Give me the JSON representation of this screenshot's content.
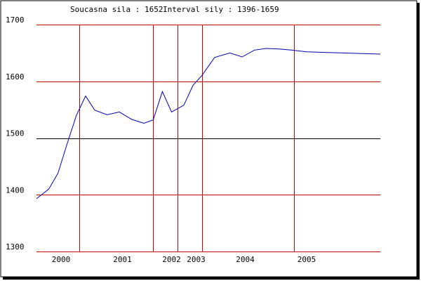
{
  "header": {
    "current_label": "Soucasna sila : 1652",
    "interval_label": "Interval sily : 1396-1659"
  },
  "colors": {
    "line": "#0000aa",
    "grid_vertical": "#cc0000",
    "grid_horizontal": "#cc0000",
    "baseline": "#000000",
    "frame": "#000000",
    "shadow": "#000000"
  },
  "chart_data": {
    "type": "line",
    "title": "",
    "xlabel": "",
    "ylabel": "",
    "ylim": [
      1300,
      1700
    ],
    "y_ticks": [
      1300,
      1400,
      1500,
      1600,
      1700
    ],
    "y_tick_labels": [
      "1300",
      "1400",
      "1500",
      "1600",
      "1700"
    ],
    "x_tick_labels": [
      "2000",
      "2001",
      "2002",
      "2003",
      "2004",
      "2005"
    ],
    "x_tick_values": [
      2000.0,
      2001.0,
      2001.8,
      2002.2,
      2003.0,
      2004.0
    ],
    "vertical_lines": [
      2000.3,
      2001.5,
      2001.9,
      2002.3,
      2003.8
    ],
    "x_range": [
      1999.6,
      2005.2
    ],
    "series": [
      {
        "x": [
          1999.6,
          1999.8,
          1999.95,
          2000.1,
          2000.25,
          2000.4,
          2000.55,
          2000.75,
          2000.95,
          2001.15,
          2001.35,
          2001.5,
          2001.65,
          2001.8,
          2002.0,
          2002.15,
          2002.3,
          2002.5,
          2002.75,
          2002.95,
          2003.15,
          2003.35,
          2003.55,
          2003.75,
          2004.0,
          2004.3,
          2004.6,
          2005.2
        ],
        "values": [
          1393,
          1410,
          1438,
          1490,
          1540,
          1574,
          1549,
          1541,
          1546,
          1533,
          1526,
          1532,
          1582,
          1546,
          1558,
          1593,
          1611,
          1642,
          1650,
          1643,
          1655,
          1658,
          1657,
          1655,
          1652,
          1651,
          1650,
          1648
        ]
      }
    ]
  }
}
